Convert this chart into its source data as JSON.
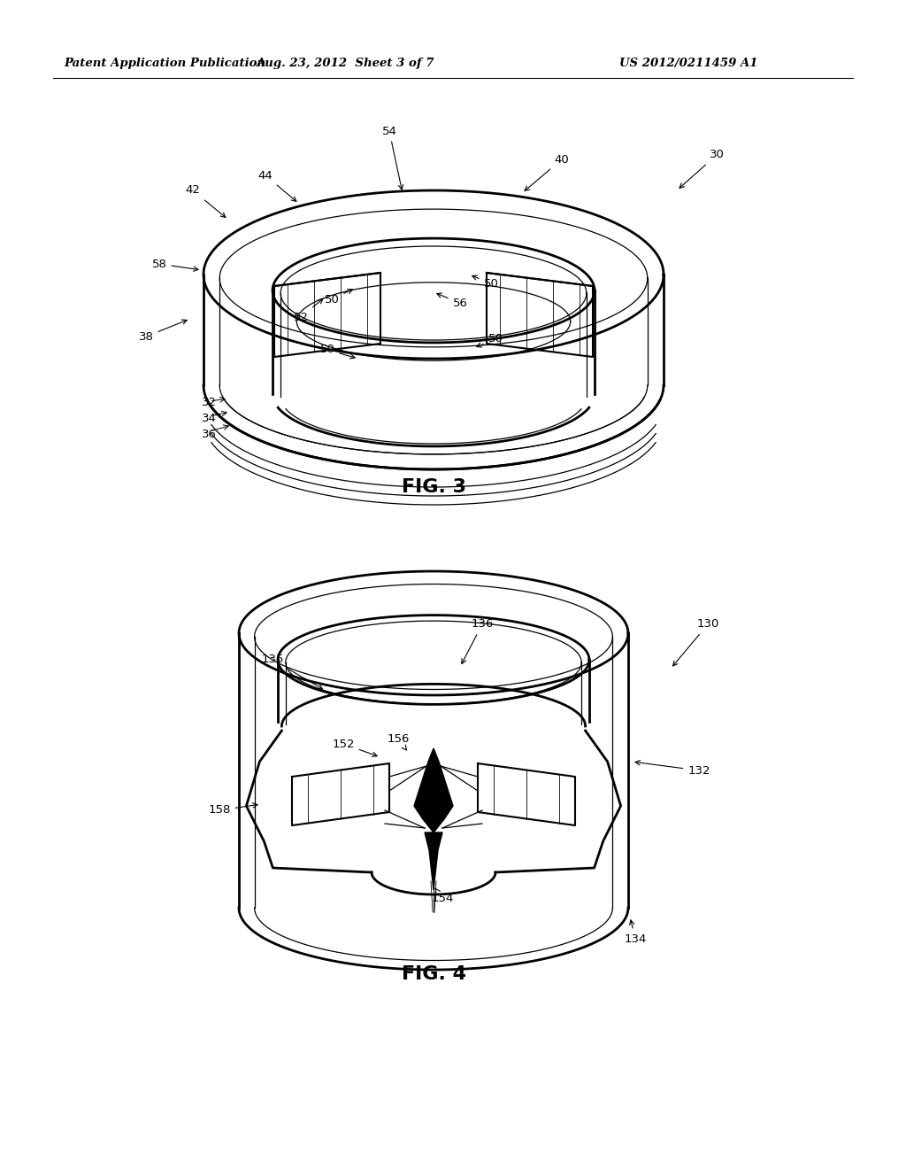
{
  "background_color": "#ffffff",
  "header_left": "Patent Application Publication",
  "header_mid": "Aug. 23, 2012  Sheet 3 of 7",
  "header_right": "US 2012/0211459 A1",
  "fig3_label": "FIG. 3",
  "fig4_label": "FIG. 4",
  "line_color": "#000000",
  "gray_light": "#cccccc",
  "gray_med": "#888888"
}
